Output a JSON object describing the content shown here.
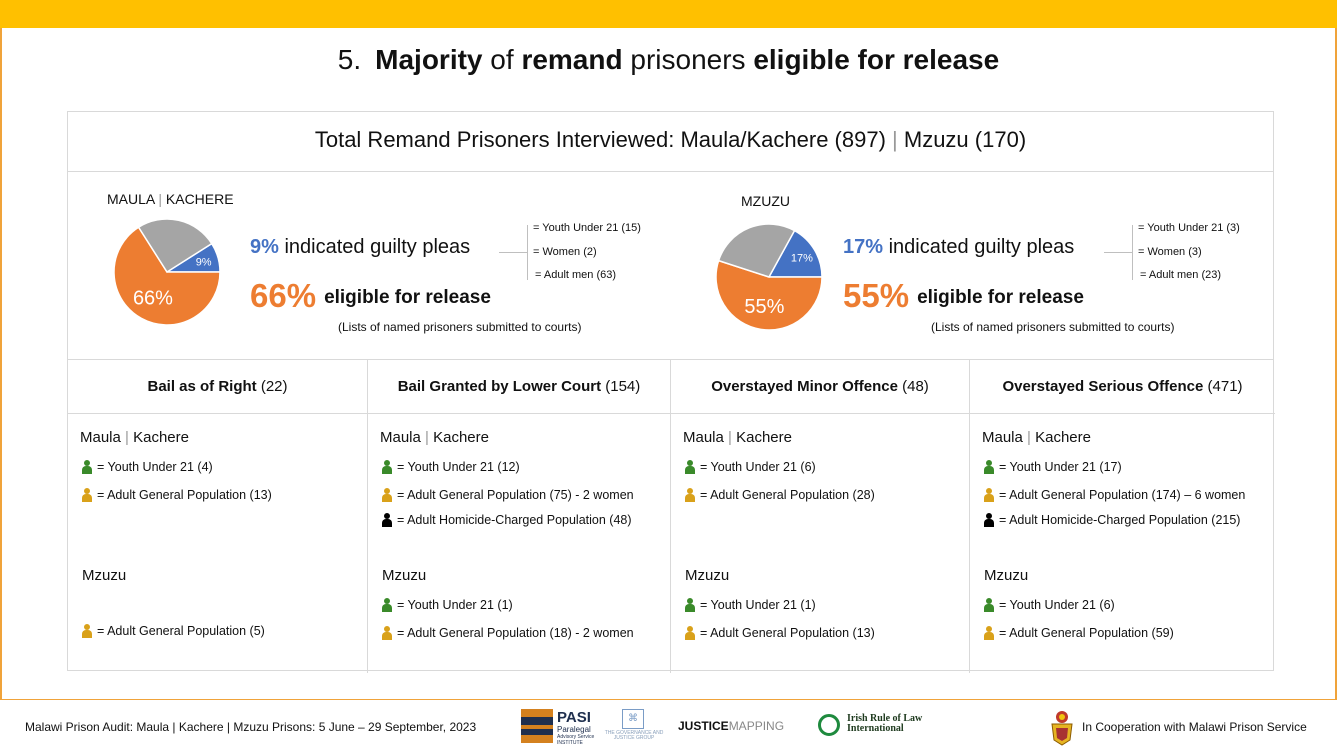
{
  "slide": {
    "title_num": "5.",
    "title_parts": [
      "Majority",
      " of ",
      "remand",
      " prisoners ",
      "eligible for release"
    ]
  },
  "total": {
    "label": "Total Remand Prisoners Interviewed: Maula/Kachere (897)",
    "sep": "|",
    "label2": "Mzuzu (170)"
  },
  "sites": [
    {
      "name": "MAULA",
      "name2": "KACHERE",
      "pie_small_label": "9%",
      "pie_big_label": "66%",
      "guilty_pct": "9%",
      "guilty_text": "indicated guilty pleas",
      "eligible_pct": "66%",
      "eligible_text": "eligible for release",
      "note": "(Lists of named prisoners submitted to courts)",
      "breakdown": [
        "= Youth Under 21 (15)",
        "= Women (2)",
        "= Adult men (63)"
      ]
    },
    {
      "name": "MZUZU",
      "pie_small_label": "17%",
      "pie_big_label": "55%",
      "guilty_pct": "17%",
      "guilty_text": "indicated guilty pleas",
      "eligible_pct": "55%",
      "eligible_text": "eligible for release",
      "note": "(Lists of named prisoners submitted to courts)",
      "breakdown": [
        "= Youth Under 21 (3)",
        "= Women (3)",
        "= Adult men (23)"
      ]
    }
  ],
  "chart_data": [
    {
      "type": "pie",
      "title": "MAULA | KACHERE",
      "slices": [
        {
          "value": 9,
          "label": "9%",
          "color": "#4472c4"
        },
        {
          "value": 66,
          "label": "66%",
          "color": "#ed7d31"
        },
        {
          "value": 25,
          "label": "",
          "color": "#a5a5a5"
        }
      ]
    },
    {
      "type": "pie",
      "title": "MZUZU",
      "slices": [
        {
          "value": 17,
          "label": "17%",
          "color": "#4472c4"
        },
        {
          "value": 55,
          "label": "55%",
          "color": "#ed7d31"
        },
        {
          "value": 28,
          "label": "",
          "color": "#a5a5a5"
        }
      ]
    }
  ],
  "categories": [
    {
      "title_bold": "Bail as of Right",
      "title_count": " (22)",
      "region1": "Maula",
      "region1b": "Kachere",
      "items1": [
        {
          "icon": "green",
          "text": "= Youth Under 21 (4)"
        },
        {
          "icon": "gold",
          "text": "= Adult General Population (13)"
        }
      ],
      "region2": "Mzuzu",
      "items2": [
        {
          "icon": "gold",
          "text": "= Adult General Population (5)"
        }
      ]
    },
    {
      "title_bold": "Bail Granted by Lower Court",
      "title_count": " (154)",
      "region1": "Maula",
      "region1b": "Kachere",
      "items1": [
        {
          "icon": "green",
          "text": "= Youth Under 21 (12)"
        },
        {
          "icon": "gold",
          "text": "= Adult General Population (75) - 2 women"
        },
        {
          "icon": "black",
          "text": "= Adult Homicide-Charged Population (48)"
        }
      ],
      "region2": "Mzuzu",
      "items2": [
        {
          "icon": "green",
          "text": "= Youth Under 21 (1)"
        },
        {
          "icon": "gold",
          "text": "= Adult General Population (18) - 2 women"
        }
      ]
    },
    {
      "title_bold": "Overstayed Minor Offence",
      "title_count": " (48)",
      "region1": "Maula",
      "region1b": "Kachere",
      "items1": [
        {
          "icon": "green",
          "text": "= Youth Under 21 (6)"
        },
        {
          "icon": "gold",
          "text": "= Adult General Population (28)"
        }
      ],
      "region2": "Mzuzu",
      "items2": [
        {
          "icon": "green",
          "text": "= Youth Under 21 (1)"
        },
        {
          "icon": "gold",
          "text": "= Adult General Population (13)"
        }
      ]
    },
    {
      "title_bold": "Overstayed Serious Offence",
      "title_count": " (471)",
      "region1": "Maula",
      "region1b": "Kachere",
      "items1": [
        {
          "icon": "green",
          "text": "= Youth Under 21 (17)"
        },
        {
          "icon": "gold",
          "text": "= Adult General Population (174) – 6 women"
        },
        {
          "icon": "black",
          "text": "= Adult Homicide-Charged Population (215)"
        }
      ],
      "region2": "Mzuzu",
      "items2": [
        {
          "icon": "green",
          "text": "= Youth Under 21 (6)"
        },
        {
          "icon": "gold",
          "text": "= Adult General Population (59)"
        }
      ]
    }
  ],
  "footer": {
    "audit_text": "Malawi Prison Audit: Maula | Kachere | Mzuzu Prisons: 5 June – 29 September, 2023",
    "pasi": "PASI",
    "pasi_sub1": "Paralegal",
    "pasi_sub2": "Advisory Service",
    "pasi_sub3": "INSTITUTE",
    "gov_text": "THE GOVERNANCE AND JUSTICE GROUP",
    "justice": "JUSTICE",
    "mapping": "MAPPING",
    "irl1": "Irish Rule of Law",
    "irl2": "International",
    "coop": "In Cooperation with Malawi Prison Service"
  },
  "colors": {
    "accent_top": "#ffc000",
    "guilty": "#4472c4",
    "eligible": "#ed7d31",
    "other": "#a5a5a5",
    "youth_icon": "#3a8a2a",
    "adult_icon": "#d9a11a",
    "homicide_icon": "#000000"
  }
}
